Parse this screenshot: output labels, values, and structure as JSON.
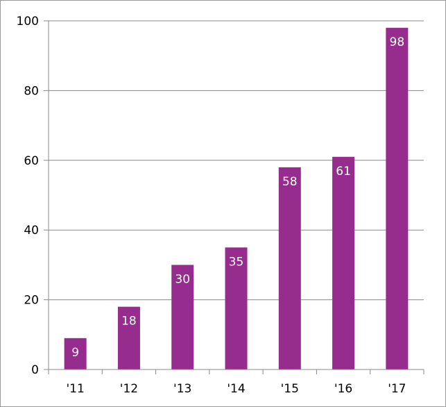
{
  "chart_data": {
    "type": "bar",
    "categories": [
      "'11",
      "'12",
      "'13",
      "'14",
      "'15",
      "'16",
      "'17"
    ],
    "values": [
      9,
      18,
      30,
      35,
      58,
      61,
      98
    ],
    "data_labels": [
      "9",
      "18",
      "30",
      "35",
      "58",
      "61",
      "98"
    ],
    "yticks": [
      0,
      20,
      40,
      60,
      80,
      100
    ],
    "ytick_labels": [
      "0",
      "20",
      "40",
      "60",
      "80",
      "100"
    ],
    "ylim": [
      0,
      100
    ],
    "title": "",
    "xlabel": "",
    "ylabel": "",
    "grid": true,
    "bar_color": "#962D8E",
    "grid_color": "#888888"
  }
}
